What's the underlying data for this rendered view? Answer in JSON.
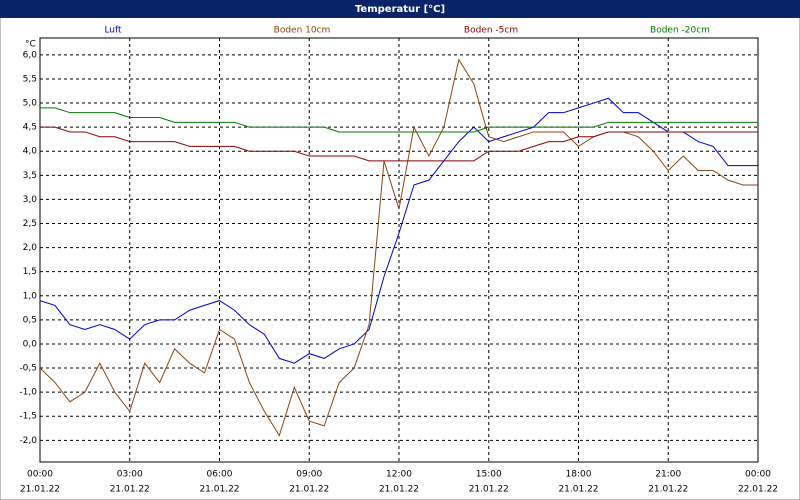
{
  "window_title": "Temperatur [°C]",
  "chart_data": {
    "type": "line",
    "y_unit": "°C",
    "x": [
      0,
      0.5,
      1,
      1.5,
      2,
      2.5,
      3,
      3.5,
      4,
      4.5,
      5,
      5.5,
      6,
      6.5,
      7,
      7.5,
      8,
      8.5,
      9,
      9.5,
      10,
      10.5,
      11,
      11.5,
      12,
      12.5,
      13,
      13.5,
      14,
      14.5,
      15,
      15.5,
      16,
      16.5,
      17,
      17.5,
      18,
      18.5,
      19,
      19.5,
      20,
      20.5,
      21,
      21.5,
      22,
      22.5,
      23,
      23.5,
      24
    ],
    "xlim": [
      0,
      24
    ],
    "xticks": [
      {
        "value": 0,
        "label": "00:00"
      },
      {
        "value": 3,
        "label": "03:00"
      },
      {
        "value": 6,
        "label": "06:00"
      },
      {
        "value": 9,
        "label": "09:00"
      },
      {
        "value": 12,
        "label": "12:00"
      },
      {
        "value": 15,
        "label": "15:00"
      },
      {
        "value": 18,
        "label": "18:00"
      },
      {
        "value": 21,
        "label": "21:00"
      },
      {
        "value": 24,
        "label": "00:00"
      }
    ],
    "xtick_dates": [
      "21.01.22",
      "21.01.22",
      "21.01.22",
      "21.01.22",
      "21.01.22",
      "21.01.22",
      "21.01.22",
      "21.01.22",
      "22.01.22"
    ],
    "ylim": [
      -2.45,
      6.35
    ],
    "yticks": [
      {
        "value": -2,
        "label": "-2,0"
      },
      {
        "value": -1.5,
        "label": "-1,5"
      },
      {
        "value": -1,
        "label": "-1,0"
      },
      {
        "value": -0.5,
        "label": "-0,5"
      },
      {
        "value": 0,
        "label": "0,0"
      },
      {
        "value": 0.5,
        "label": "0,5"
      },
      {
        "value": 1,
        "label": "1,0"
      },
      {
        "value": 1.5,
        "label": "1,5"
      },
      {
        "value": 2,
        "label": "2,0"
      },
      {
        "value": 2.5,
        "label": "2,5"
      },
      {
        "value": 3,
        "label": "3,0"
      },
      {
        "value": 3.5,
        "label": "3,5"
      },
      {
        "value": 4,
        "label": "4,0"
      },
      {
        "value": 4.5,
        "label": "4,5"
      },
      {
        "value": 5,
        "label": "5,0"
      },
      {
        "value": 5.5,
        "label": "5,5"
      },
      {
        "value": 6,
        "label": "6,0"
      }
    ],
    "grid": true,
    "series": [
      {
        "name": "Luft",
        "color": "#0000cc",
        "values": [
          0.9,
          0.8,
          0.4,
          0.3,
          0.4,
          0.3,
          0.1,
          0.4,
          0.5,
          0.5,
          0.7,
          0.8,
          0.9,
          0.7,
          0.4,
          0.2,
          -0.3,
          -0.4,
          -0.2,
          -0.3,
          -0.1,
          0.0,
          0.3,
          1.4,
          2.3,
          3.3,
          3.4,
          3.8,
          4.2,
          4.5,
          4.2,
          4.3,
          4.4,
          4.5,
          4.8,
          4.8,
          4.9,
          5.0,
          5.1,
          4.8,
          4.8,
          4.6,
          4.4,
          4.4,
          4.2,
          4.1,
          3.7,
          3.7,
          3.7
        ]
      },
      {
        "name": "Boden 10cm",
        "color": "#8b4513",
        "values": [
          -0.5,
          -0.8,
          -1.2,
          -1.0,
          -0.4,
          -1.0,
          -1.4,
          -0.4,
          -0.8,
          -0.1,
          -0.4,
          -0.6,
          0.3,
          0.1,
          -0.8,
          -1.4,
          -1.9,
          -0.9,
          -1.6,
          -1.7,
          -0.8,
          -0.5,
          0.4,
          3.8,
          2.8,
          4.5,
          3.9,
          4.5,
          5.9,
          5.4,
          4.3,
          4.2,
          4.3,
          4.4,
          4.4,
          4.4,
          4.1,
          4.3,
          4.4,
          4.4,
          4.3,
          4.0,
          3.6,
          3.9,
          3.6,
          3.6,
          3.4,
          3.3,
          3.3
        ]
      },
      {
        "name": "Boden -5cm",
        "color": "#8b0000",
        "values": [
          4.5,
          4.5,
          4.4,
          4.4,
          4.3,
          4.3,
          4.2,
          4.2,
          4.2,
          4.2,
          4.1,
          4.1,
          4.1,
          4.1,
          4.0,
          4.0,
          4.0,
          4.0,
          3.9,
          3.9,
          3.9,
          3.9,
          3.8,
          3.8,
          3.8,
          3.8,
          3.8,
          3.8,
          3.8,
          3.8,
          4.0,
          4.0,
          4.0,
          4.1,
          4.2,
          4.2,
          4.3,
          4.3,
          4.4,
          4.4,
          4.4,
          4.4,
          4.4,
          4.4,
          4.4,
          4.4,
          4.4,
          4.4,
          4.4
        ]
      },
      {
        "name": "Boden -20cm",
        "color": "#007700",
        "values": [
          4.9,
          4.9,
          4.8,
          4.8,
          4.8,
          4.8,
          4.7,
          4.7,
          4.7,
          4.6,
          4.6,
          4.6,
          4.6,
          4.6,
          4.5,
          4.5,
          4.5,
          4.5,
          4.5,
          4.5,
          4.4,
          4.4,
          4.4,
          4.4,
          4.4,
          4.4,
          4.4,
          4.4,
          4.4,
          4.4,
          4.5,
          4.5,
          4.5,
          4.5,
          4.5,
          4.5,
          4.5,
          4.5,
          4.6,
          4.6,
          4.6,
          4.6,
          4.6,
          4.6,
          4.6,
          4.6,
          4.6,
          4.6,
          4.6
        ]
      }
    ]
  }
}
